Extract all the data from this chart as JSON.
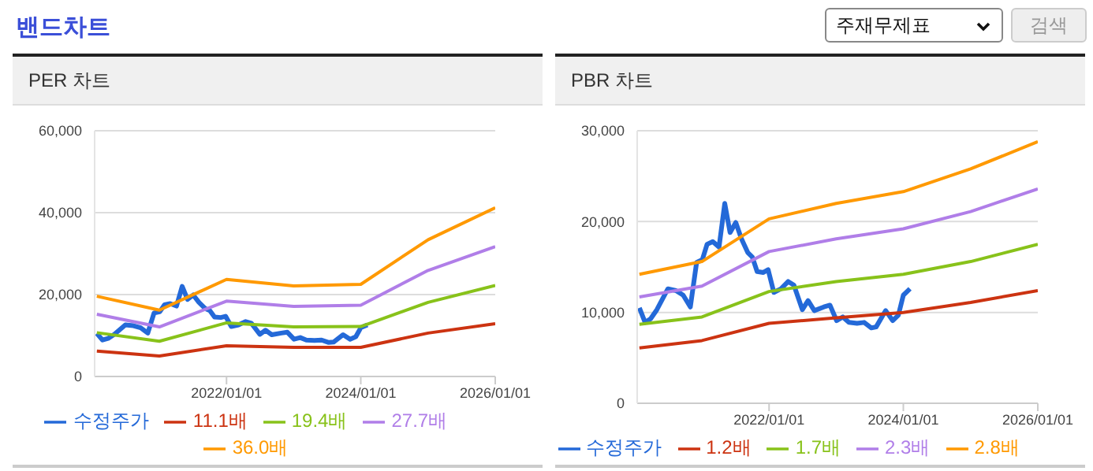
{
  "chart_data": [
    {
      "type": "line",
      "title": "PER 차트",
      "annotations": [
        "밴드차트",
        "주재무제표",
        "검색"
      ],
      "xlim": [
        "2020-01-15",
        "2026-01-01"
      ],
      "xticks": [
        {
          "value": "2022-01-01",
          "label": "2022/01/01"
        },
        {
          "value": "2024-01-01",
          "label": "2024/01/01"
        },
        {
          "value": "2026-01-01",
          "label": "2026/01/01"
        }
      ],
      "ylim": [
        0,
        60000
      ],
      "yticks": [
        {
          "value": 0,
          "label": "0"
        },
        {
          "value": 20000,
          "label": "20,000"
        },
        {
          "value": 40000,
          "label": "40,000"
        },
        {
          "value": 60000,
          "label": "60,000"
        }
      ],
      "grid": "y",
      "legend": "bottom",
      "marker": "none",
      "line_style": "solid",
      "series": [
        {
          "name": "수정주가",
          "color": "#2469d8",
          "x": [
            "2020-01-27",
            "2020-02-27",
            "2020-03-28",
            "2020-05-01",
            "2020-06-30",
            "2020-08-13",
            "2020-09-21",
            "2020-10-30",
            "2020-12-03",
            "2021-01-03",
            "2021-01-29",
            "2021-03-01",
            "2021-04-04",
            "2021-05-05",
            "2021-06-03",
            "2021-07-04",
            "2021-08-04",
            "2021-09-07",
            "2021-10-02",
            "2021-10-28",
            "2021-12-01",
            "2021-12-27",
            "2022-01-27",
            "2022-03-07",
            "2022-04-15",
            "2022-05-16",
            "2022-07-01",
            "2022-08-01",
            "2022-09-04",
            "2022-10-26",
            "2022-11-28",
            "2023-01-03",
            "2023-02-06",
            "2023-03-11",
            "2023-04-24",
            "2023-06-02",
            "2023-07-11",
            "2023-08-06",
            "2023-09-27",
            "2023-11-04",
            "2023-12-05",
            "2024-01-01",
            "2024-02-06"
          ],
          "values": [
            10500,
            8900,
            9300,
            10300,
            12600,
            12400,
            11900,
            10600,
            15500,
            15800,
            17500,
            17800,
            17200,
            22000,
            18800,
            19900,
            18100,
            16600,
            16100,
            14500,
            14400,
            14700,
            12200,
            12600,
            13400,
            13000,
            10300,
            11300,
            10200,
            10600,
            10800,
            9100,
            9500,
            8900,
            8800,
            8900,
            8300,
            8400,
            10200,
            9100,
            9700,
            11900,
            12600
          ]
        },
        {
          "name": "11.1배",
          "color": "#cc3311",
          "x": [
            "2020-01-27",
            "2021-01-01",
            "2022-01-01",
            "2023-01-01",
            "2024-01-01",
            "2025-01-01",
            "2026-01-01"
          ],
          "values": [
            6200,
            5000,
            7500,
            7100,
            7100,
            10600,
            12900
          ]
        },
        {
          "name": "19.4배",
          "color": "#88c21a",
          "x": [
            "2020-01-27",
            "2021-01-01",
            "2022-01-01",
            "2023-01-01",
            "2024-01-01",
            "2025-01-01",
            "2026-01-01"
          ],
          "values": [
            10700,
            8600,
            13100,
            12100,
            12200,
            18100,
            22200
          ]
        },
        {
          "name": "27.7배",
          "color": "#b07ee8",
          "x": [
            "2020-01-27",
            "2021-01-01",
            "2022-01-01",
            "2023-01-01",
            "2024-01-01",
            "2025-01-01",
            "2026-01-01"
          ],
          "values": [
            15200,
            12100,
            18400,
            17100,
            17400,
            25900,
            31700
          ]
        },
        {
          "name": "36.0배",
          "color": "#ff9900",
          "x": [
            "2020-01-27",
            "2021-01-01",
            "2022-01-01",
            "2023-01-01",
            "2024-01-01",
            "2025-01-01",
            "2026-01-01"
          ],
          "values": [
            19600,
            16200,
            23700,
            22100,
            22500,
            33400,
            41200
          ]
        }
      ]
    },
    {
      "type": "line",
      "title": "PBR 차트",
      "xlim": [
        "2020-01-15",
        "2026-01-01"
      ],
      "xticks": [
        {
          "value": "2022-01-01",
          "label": "2022/01/01"
        },
        {
          "value": "2024-01-01",
          "label": "2024/01/01"
        },
        {
          "value": "2026-01-01",
          "label": "2026/01/01"
        }
      ],
      "ylim": [
        0,
        30000
      ],
      "yticks": [
        {
          "value": 0,
          "label": "0"
        },
        {
          "value": 10000,
          "label": "10,000"
        },
        {
          "value": 20000,
          "label": "20,000"
        },
        {
          "value": 30000,
          "label": "30,000"
        }
      ],
      "grid": "y",
      "legend": "bottom",
      "marker": "none",
      "line_style": "solid",
      "series": [
        {
          "name": "수정주가",
          "color": "#2469d8",
          "x": [
            "2020-01-27",
            "2020-02-27",
            "2020-03-28",
            "2020-05-01",
            "2020-06-30",
            "2020-08-13",
            "2020-09-21",
            "2020-10-30",
            "2020-12-03",
            "2021-01-03",
            "2021-01-29",
            "2021-03-01",
            "2021-04-04",
            "2021-05-05",
            "2021-06-03",
            "2021-07-04",
            "2021-08-04",
            "2021-09-07",
            "2021-10-02",
            "2021-10-28",
            "2021-12-01",
            "2021-12-27",
            "2022-01-27",
            "2022-03-07",
            "2022-04-15",
            "2022-05-16",
            "2022-07-01",
            "2022-08-01",
            "2022-09-04",
            "2022-10-26",
            "2022-11-28",
            "2023-01-03",
            "2023-02-06",
            "2023-03-11",
            "2023-04-24",
            "2023-06-02",
            "2023-07-11",
            "2023-08-06",
            "2023-09-27",
            "2023-11-04",
            "2023-12-05",
            "2024-01-01",
            "2024-02-06"
          ],
          "values": [
            10500,
            8900,
            9300,
            10300,
            12600,
            12400,
            11900,
            10600,
            15500,
            15800,
            17500,
            17800,
            17200,
            22000,
            18800,
            19900,
            18100,
            16600,
            16100,
            14500,
            14400,
            14700,
            12200,
            12600,
            13400,
            13000,
            10300,
            11300,
            10200,
            10600,
            10800,
            9100,
            9500,
            8900,
            8800,
            8900,
            8300,
            8400,
            10200,
            9100,
            9700,
            11900,
            12600
          ]
        },
        {
          "name": "1.2배",
          "color": "#cc3311",
          "x": [
            "2020-01-27",
            "2021-01-01",
            "2022-01-01",
            "2023-01-01",
            "2024-01-01",
            "2025-01-01",
            "2026-01-01"
          ],
          "values": [
            6100,
            6900,
            8800,
            9400,
            10000,
            11100,
            12400
          ]
        },
        {
          "name": "1.7배",
          "color": "#88c21a",
          "x": [
            "2020-01-27",
            "2021-01-01",
            "2022-01-01",
            "2023-01-01",
            "2024-01-01",
            "2025-01-01",
            "2026-01-01"
          ],
          "values": [
            8700,
            9500,
            12300,
            13400,
            14200,
            15600,
            17500
          ]
        },
        {
          "name": "2.3배",
          "color": "#b07ee8",
          "x": [
            "2020-01-27",
            "2021-01-01",
            "2022-01-01",
            "2023-01-01",
            "2024-01-01",
            "2025-01-01",
            "2026-01-01"
          ],
          "values": [
            11700,
            12900,
            16700,
            18100,
            19200,
            21100,
            23600
          ]
        },
        {
          "name": "2.8배",
          "color": "#ff9900",
          "x": [
            "2020-01-27",
            "2021-01-01",
            "2022-01-01",
            "2023-01-01",
            "2024-01-01",
            "2025-01-01",
            "2026-01-01"
          ],
          "values": [
            14200,
            15600,
            20300,
            22000,
            23300,
            25800,
            28800
          ]
        }
      ]
    }
  ]
}
